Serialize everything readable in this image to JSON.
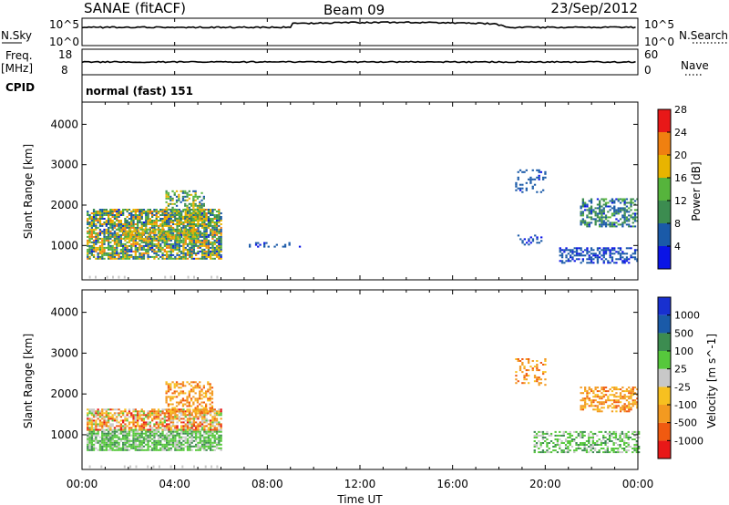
{
  "header": {
    "title": "SANAE (fitACF)",
    "beam": "Beam 09",
    "date": "23/Sep/2012"
  },
  "noise_panel": {
    "left_label": "N.Sky",
    "right_label": "N.Search",
    "left_ticks": [
      "10^5",
      "10^0"
    ],
    "right_ticks": [
      "10^5",
      "10^0"
    ]
  },
  "freq_panel": {
    "left_label_top": "Freq.",
    "left_label_bottom": "[MHz]",
    "right_label": "Nave",
    "left_ticks": [
      "18",
      "8"
    ],
    "right_ticks": [
      "60",
      "0"
    ]
  },
  "cpid": {
    "label": "CPID",
    "value": "normal (fast) 151"
  },
  "x_axis": {
    "label": "Time UT",
    "ticks": [
      "00:00",
      "04:00",
      "08:00",
      "12:00",
      "16:00",
      "20:00",
      "00:00"
    ]
  },
  "colors": {
    "power": [
      "#0a14e6",
      "#1a5aa8",
      "#3c8c50",
      "#56b43c",
      "#e8b400",
      "#f08010",
      "#e81818"
    ],
    "velocity": [
      "#e81818",
      "#f05a10",
      "#f39a20",
      "#f7c020",
      "#c8c8c8",
      "#56c83c",
      "#3c8c50",
      "#1a5aa8",
      "#1830d0"
    ]
  },
  "chart_data": [
    {
      "type": "heatmap",
      "name": "power_panel",
      "ylabel": "Slant Range [km]",
      "xlabel": "",
      "x_range_hours": [
        0,
        24
      ],
      "ylim": [
        150,
        4550
      ],
      "yticks": [
        "1000",
        "2000",
        "3000",
        "4000"
      ],
      "colorbar": {
        "label": "Power [dB]",
        "ticks": [
          "4",
          "8",
          "12",
          "16",
          "20",
          "24",
          "28"
        ],
        "range": [
          0,
          32
        ]
      },
      "regions": [
        {
          "t0": 0.2,
          "t1": 6.0,
          "r0": 650,
          "r1": 1900,
          "v0": 4,
          "v1": 26,
          "density": 0.8
        },
        {
          "t0": 1.5,
          "t1": 5.0,
          "r0": 1150,
          "r1": 1400,
          "v0": 14,
          "v1": 24,
          "density": 0.6
        },
        {
          "t0": 3.6,
          "t1": 5.3,
          "r0": 1600,
          "r1": 2350,
          "v0": 6,
          "v1": 22,
          "density": 0.45
        },
        {
          "t0": 7.2,
          "t1": 9.4,
          "r0": 950,
          "r1": 1050,
          "v0": 4,
          "v1": 6,
          "density": 0.3
        },
        {
          "t0": 18.7,
          "t1": 20.0,
          "r0": 2300,
          "r1": 2850,
          "v0": 4,
          "v1": 8,
          "density": 0.25
        },
        {
          "t0": 18.8,
          "t1": 20.0,
          "r0": 1000,
          "r1": 1250,
          "v0": 4,
          "v1": 6,
          "density": 0.25
        },
        {
          "t0": 21.5,
          "t1": 24.0,
          "r0": 1450,
          "r1": 2150,
          "v0": 4,
          "v1": 16,
          "density": 0.55
        },
        {
          "t0": 20.6,
          "t1": 24.0,
          "r0": 550,
          "r1": 950,
          "v0": 4,
          "v1": 6,
          "density": 0.55
        }
      ]
    },
    {
      "type": "heatmap",
      "name": "velocity_panel",
      "ylabel": "Slant Range [km]",
      "xlabel": "Time UT",
      "x_range_hours": [
        0,
        24
      ],
      "ylim": [
        150,
        4550
      ],
      "yticks": [
        "1000",
        "2000",
        "3000",
        "4000"
      ],
      "colorbar": {
        "label": "Velocity [m s^-1]",
        "ticks": [
          "-1000",
          "-500",
          "-100",
          "-25",
          "25",
          "100",
          "500",
          "1000"
        ]
      },
      "regions": [
        {
          "t0": 0.2,
          "t1": 6.0,
          "r0": 600,
          "r1": 1100,
          "v0": 4,
          "v1": 6,
          "density": 0.8
        },
        {
          "t0": 0.2,
          "t1": 6.0,
          "r0": 1100,
          "r1": 1600,
          "v0": 0,
          "v1": 5,
          "density": 0.7
        },
        {
          "t0": 3.6,
          "t1": 5.6,
          "r0": 1500,
          "r1": 2300,
          "v0": 1,
          "v1": 3,
          "density": 0.5
        },
        {
          "t0": 18.7,
          "t1": 20.0,
          "r0": 2200,
          "r1": 2850,
          "v0": 1,
          "v1": 3,
          "density": 0.3
        },
        {
          "t0": 21.5,
          "t1": 24.0,
          "r0": 1550,
          "r1": 2150,
          "v0": 1,
          "v1": 3,
          "density": 0.55
        },
        {
          "t0": 19.5,
          "t1": 24.0,
          "r0": 550,
          "r1": 1050,
          "v0": 4,
          "v1": 6,
          "density": 0.5
        }
      ]
    }
  ]
}
